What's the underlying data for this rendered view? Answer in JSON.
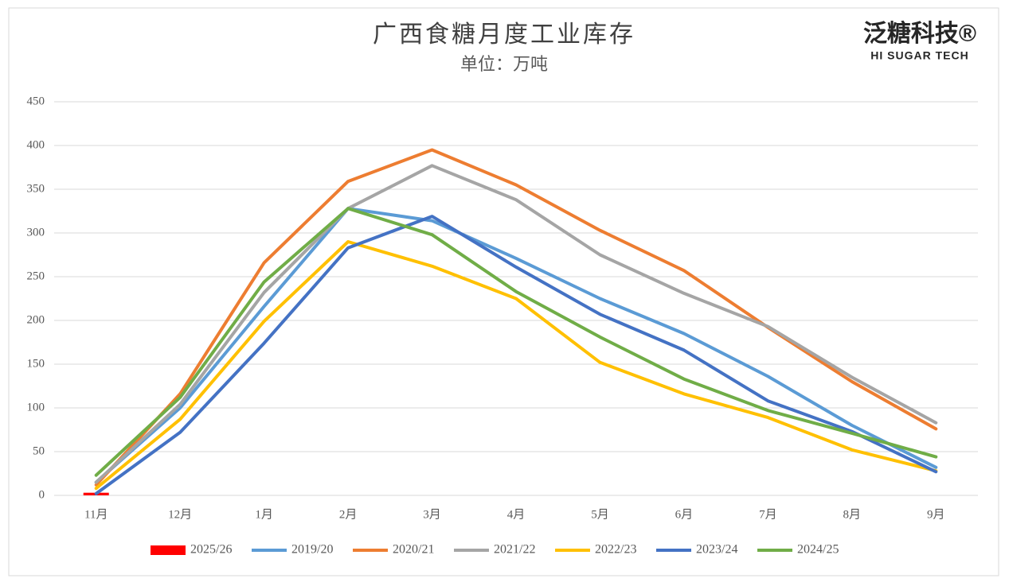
{
  "chart_data": {
    "type": "line",
    "title": "广西食糖月度工业库存",
    "subtitle": "单位：万吨",
    "logo": "泛糖科技®",
    "logo_subtitle": "HI SUGAR TECH",
    "categories": [
      "11月",
      "12月",
      "1月",
      "2月",
      "3月",
      "4月",
      "5月",
      "6月",
      "7月",
      "8月",
      "9月"
    ],
    "series": [
      {
        "name": "2025/26",
        "type": "bar",
        "color": "#ff0000",
        "values": [
          3,
          null,
          null,
          null,
          null,
          null,
          null,
          null,
          null,
          null,
          null
        ]
      },
      {
        "name": "2019/20",
        "color": "#5b9bd5",
        "values": [
          15,
          100,
          216,
          328,
          314,
          271,
          225,
          185,
          136,
          80,
          32
        ]
      },
      {
        "name": "2020/21",
        "color": "#ed7d31",
        "values": [
          12,
          116,
          266,
          359,
          395,
          355,
          303,
          257,
          192,
          130,
          76
        ]
      },
      {
        "name": "2021/22",
        "color": "#a5a5a5",
        "values": [
          15,
          104,
          232,
          328,
          377,
          338,
          275,
          231,
          193,
          135,
          83
        ]
      },
      {
        "name": "2022/23",
        "color": "#ffc000",
        "values": [
          8,
          87,
          199,
          290,
          262,
          225,
          152,
          116,
          89,
          52,
          28
        ]
      },
      {
        "name": "2023/24",
        "color": "#4472c4",
        "values": [
          2,
          72,
          174,
          283,
          319,
          261,
          207,
          166,
          108,
          73,
          27
        ]
      },
      {
        "name": "2024/25",
        "color": "#70ad47",
        "values": [
          23,
          112,
          244,
          328,
          298,
          233,
          181,
          133,
          97,
          71,
          44
        ]
      }
    ],
    "ylim": [
      0,
      450
    ],
    "yticks": [
      0,
      50,
      100,
      150,
      200,
      250,
      300,
      350,
      400,
      450
    ],
    "grid": true,
    "legend": "bottom"
  }
}
